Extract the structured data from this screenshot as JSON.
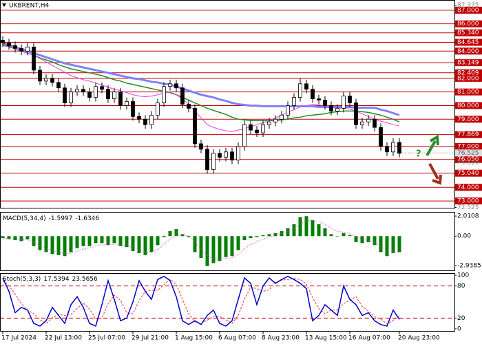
{
  "chart_data": [
    {
      "type": "candlestick",
      "title": "UKBRENT,H4",
      "categories": [
        "17 Jul 2024",
        null,
        null,
        null,
        null,
        null,
        null,
        "22 Jul 13:00",
        null,
        null,
        null,
        null,
        null,
        null,
        "25 Jul 07:00",
        null,
        null,
        null,
        null,
        null,
        null,
        "29 Jul 21:00",
        null,
        null,
        null,
        null,
        null,
        null,
        "1 Aug 15:00",
        null,
        null,
        null,
        null,
        null,
        null,
        "6 Aug 07:00",
        null,
        null,
        null,
        null,
        null,
        null,
        "8 Aug 23:00",
        null,
        null,
        null,
        null,
        null,
        null,
        "13 Aug 15:00",
        null,
        null,
        null,
        null,
        null,
        null,
        "16 Aug 07:00",
        null,
        null,
        null,
        null,
        null,
        null,
        null,
        "20 Aug 23:00"
      ],
      "open": [
        84.8,
        84.6,
        84.4,
        84.2,
        84.0,
        84.3,
        82.6,
        81.8,
        82.0,
        81.7,
        81.3,
        80.2,
        81.0,
        81.2,
        81.0,
        80.6,
        81.4,
        81.2,
        80.5,
        81.0,
        80.0,
        80.3,
        79.2,
        79.0,
        78.6,
        79.3,
        80.2,
        81.4,
        81.6,
        81.3,
        80.1,
        79.8,
        77.2,
        76.8,
        75.3,
        76.5,
        76.2,
        76.6,
        76.0,
        77.0,
        78.6,
        78.2,
        78.0,
        78.6,
        78.8,
        79.0,
        79.3,
        80.0,
        80.6,
        81.6,
        81.2,
        80.5,
        80.4,
        80.0,
        79.6,
        79.8,
        80.7,
        80.2,
        78.6,
        78.8,
        79.0,
        78.4,
        77.0,
        76.6,
        77.3
      ],
      "high": [
        85.1,
        84.9,
        84.7,
        84.5,
        84.6,
        84.6,
        82.9,
        82.3,
        82.3,
        82.0,
        81.6,
        81.3,
        81.5,
        81.5,
        81.3,
        81.7,
        81.7,
        81.5,
        81.3,
        81.3,
        80.6,
        80.6,
        79.5,
        79.3,
        79.6,
        80.5,
        81.7,
        81.9,
        81.9,
        81.6,
        80.4,
        80.1,
        77.5,
        77.1,
        76.8,
        76.8,
        76.9,
        76.9,
        77.3,
        78.9,
        78.9,
        78.5,
        78.9,
        79.1,
        79.3,
        79.6,
        80.3,
        80.9,
        82.0,
        81.9,
        81.5,
        80.8,
        80.7,
        80.3,
        80.1,
        81.0,
        81.0,
        80.5,
        79.1,
        79.3,
        79.3,
        78.7,
        77.3,
        77.6,
        77.6
      ],
      "low": [
        84.3,
        84.1,
        83.9,
        83.7,
        83.7,
        82.3,
        81.5,
        81.5,
        81.4,
        81.0,
        79.9,
        79.9,
        80.7,
        80.7,
        80.3,
        80.3,
        80.9,
        80.2,
        80.2,
        79.7,
        79.7,
        78.9,
        78.7,
        78.3,
        78.3,
        79.0,
        79.9,
        81.1,
        81.0,
        79.8,
        79.5,
        76.9,
        76.5,
        75.0,
        75.0,
        75.9,
        75.9,
        75.7,
        75.7,
        76.7,
        77.9,
        77.7,
        77.7,
        78.3,
        78.5,
        78.7,
        79.0,
        79.7,
        80.3,
        80.9,
        80.2,
        80.1,
        79.7,
        79.3,
        79.3,
        79.5,
        79.9,
        78.3,
        78.3,
        78.5,
        78.1,
        76.7,
        76.3,
        76.3,
        76.2
      ],
      "close": [
        84.6,
        84.4,
        84.2,
        84.0,
        84.3,
        82.6,
        81.8,
        82.0,
        81.7,
        81.3,
        80.2,
        81.0,
        81.2,
        81.0,
        80.6,
        81.4,
        81.2,
        80.5,
        81.0,
        80.0,
        80.3,
        79.2,
        79.0,
        78.6,
        79.3,
        80.2,
        81.4,
        81.6,
        81.3,
        80.1,
        79.8,
        77.2,
        76.8,
        75.3,
        76.5,
        76.2,
        76.6,
        76.0,
        77.0,
        78.6,
        78.2,
        78.0,
        78.6,
        78.8,
        79.0,
        79.3,
        80.0,
        80.6,
        81.6,
        81.2,
        80.5,
        80.4,
        80.0,
        79.6,
        79.8,
        80.7,
        80.2,
        78.6,
        78.8,
        79.0,
        78.4,
        77.0,
        76.6,
        77.3,
        76.5
      ],
      "series": [
        {
          "color": "#8080ff",
          "width": 3,
          "values": [
            84.6,
            84.45,
            84.3,
            84.15,
            84.0,
            83.85,
            83.7,
            83.55,
            83.4,
            83.25,
            83.1,
            83.0,
            82.9,
            82.8,
            82.7,
            82.6,
            82.5,
            82.4,
            82.3,
            82.2,
            82.1,
            82.0,
            81.95,
            81.85,
            81.75,
            81.7,
            81.6,
            81.55,
            81.4,
            81.25,
            81.1,
            80.95,
            80.8,
            80.7,
            80.6,
            80.45,
            80.35,
            80.2,
            80.1,
            80.05,
            80.0,
            80.0,
            79.95,
            79.95,
            79.95,
            79.95,
            79.95,
            79.95,
            79.95,
            79.95,
            79.95,
            79.9,
            79.9,
            79.9,
            79.9,
            79.9,
            79.9,
            79.85,
            79.85,
            79.85,
            79.85,
            79.7,
            79.6,
            79.45,
            79.3
          ]
        },
        {
          "color": "#228b22",
          "width": 1.5,
          "values": [
            84.5,
            84.35,
            84.15,
            84.0,
            83.85,
            83.7,
            83.5,
            83.35,
            83.2,
            83.0,
            82.85,
            82.7,
            82.6,
            82.5,
            82.4,
            82.3,
            82.2,
            82.05,
            81.9,
            81.8,
            81.65,
            81.55,
            81.45,
            81.35,
            81.25,
            81.15,
            81.05,
            80.95,
            80.8,
            80.6,
            80.4,
            80.2,
            80.0,
            79.8,
            79.65,
            79.5,
            79.35,
            79.15,
            79.0,
            78.95,
            78.9,
            78.9,
            78.9,
            78.9,
            78.9,
            78.95,
            79.0,
            79.1,
            79.15,
            79.25,
            79.3,
            79.35,
            79.4,
            79.5,
            79.55,
            79.6,
            79.6,
            79.6,
            79.55,
            79.5,
            79.4,
            79.3,
            79.15,
            79.0,
            78.8
          ]
        },
        {
          "color": "#e040e0",
          "width": 1,
          "values": [
            84.4,
            84.3,
            84.15,
            84.0,
            83.85,
            83.7,
            83.45,
            83.2,
            82.95,
            82.7,
            82.45,
            82.2,
            82.05,
            81.9,
            81.8,
            81.65,
            81.5,
            81.35,
            81.2,
            81.1,
            80.95,
            80.8,
            80.7,
            80.65,
            80.7,
            80.8,
            80.9,
            81.0,
            80.8,
            80.5,
            80.1,
            79.6,
            79.1,
            78.6,
            78.4,
            78.25,
            78.15,
            78.1,
            78.2,
            78.3,
            78.45,
            78.6,
            78.75,
            78.9,
            79.1,
            79.3,
            79.5,
            79.7,
            79.9,
            80.0,
            80.1,
            80.05,
            80.0,
            79.95,
            79.85,
            79.8,
            79.75,
            79.6,
            79.4,
            79.2,
            79.0,
            78.85,
            78.75,
            78.6,
            78.5
          ]
        }
      ],
      "ylim": [
        72.5,
        87.75
      ],
      "yticks": [
        {
          "value": 87.375,
          "label": "87.375"
        },
        {
          "value": 75.81,
          "label": "75.810"
        },
        {
          "value": 72.525,
          "label": "72.525"
        }
      ],
      "levels": [
        {
          "value": 87,
          "label": "87.000"
        },
        {
          "value": 86,
          "label": "86.000"
        },
        {
          "value": 85.34,
          "label": "85.340"
        },
        {
          "value": 84.645,
          "label": "84.645"
        },
        {
          "value": 84,
          "label": "84.000"
        },
        {
          "value": 83.149,
          "label": "83.149"
        },
        {
          "value": 82.409,
          "label": "82.409"
        },
        {
          "value": 82,
          "label": "82.000"
        },
        {
          "value": 81,
          "label": "81.000"
        },
        {
          "value": 80,
          "label": "80.000"
        },
        {
          "value": 79,
          "label": "79.000"
        },
        {
          "value": 77.869,
          "label": "77.869"
        },
        {
          "value": 77,
          "label": "77.000"
        },
        {
          "value": 76.05,
          "label": "76.050"
        },
        {
          "value": 75.04,
          "label": "75.040"
        },
        {
          "value": 74,
          "label": "74.000"
        },
        {
          "value": 73,
          "label": "73.000"
        }
      ],
      "level_color": "#c00000",
      "last_price": {
        "value": 76.525,
        "label": "76.525"
      },
      "forecast_mark": "?"
    },
    {
      "type": "macd",
      "title": "MACD(5,34,4)",
      "series": [
        {
          "color": "#008000",
          "style": "histogram",
          "values": [
            -0.2,
            -0.3,
            -0.4,
            -0.5,
            -0.3,
            -1.0,
            -1.4,
            -1.6,
            -1.8,
            -1.9,
            -2.0,
            -1.6,
            -1.2,
            -1.0,
            -1.0,
            -0.7,
            -0.7,
            -0.9,
            -0.7,
            -1.0,
            -1.1,
            -1.5,
            -1.7,
            -1.9,
            -1.6,
            -0.9,
            -0.1,
            0.5,
            0.7,
            0.2,
            -0.1,
            -1.6,
            -2.2,
            -3.0,
            -2.7,
            -2.5,
            -2.1,
            -2.0,
            -1.4,
            -0.4,
            -0.2,
            -0.1,
            0.1,
            0.2,
            0.3,
            0.5,
            0.8,
            1.2,
            1.9,
            2.0,
            1.6,
            1.2,
            0.8,
            0.2,
            0.0,
            0.3,
            0.1,
            -0.6,
            -0.7,
            -0.6,
            -0.9,
            -1.6,
            -2.0,
            -1.7,
            -1.5997
          ]
        },
        {
          "color": "#e040e0",
          "style": "dotted",
          "values": [
            -0.2,
            -0.24,
            -0.3,
            -0.38,
            -0.35,
            -0.61,
            -0.93,
            -1.2,
            -1.44,
            -1.62,
            -1.77,
            -1.7,
            -1.5,
            -1.3,
            -1.18,
            -0.99,
            -0.87,
            -0.88,
            -0.81,
            -0.89,
            -0.97,
            -1.18,
            -1.39,
            -1.59,
            -1.6,
            -1.32,
            -0.83,
            -0.3,
            0.1,
            0.14,
            0.04,
            -0.62,
            -1.25,
            -1.95,
            -2.25,
            -2.35,
            -2.25,
            -2.15,
            -1.85,
            -1.27,
            -0.84,
            -0.54,
            -0.28,
            -0.09,
            0.07,
            0.24,
            0.46,
            0.76,
            1.22,
            1.53,
            1.56,
            1.42,
            1.17,
            0.78,
            0.47,
            0.4,
            0.28,
            -0.07,
            -0.32,
            -0.43,
            -0.62,
            -1.01,
            -1.41,
            -1.53,
            -1.6346
          ]
        }
      ],
      "ylim": [
        -3.43,
        2.43
      ],
      "yticks": [
        2.0108,
        {
          "value": 0,
          "label": "0.00"
        },
        -2.9385
      ]
    },
    {
      "type": "stochastic",
      "title": "Stoch(5,3,3)",
      "series": [
        {
          "color": "#0000c8",
          "style": "solid",
          "values": [
            95,
            70,
            30,
            40,
            35,
            10,
            5,
            15,
            40,
            25,
            10,
            45,
            60,
            40,
            10,
            5,
            45,
            90,
            55,
            15,
            20,
            50,
            90,
            70,
            55,
            92,
            98,
            90,
            60,
            15,
            8,
            15,
            8,
            25,
            35,
            10,
            5,
            15,
            55,
            95,
            85,
            45,
            80,
            95,
            85,
            92,
            98,
            92,
            85,
            75,
            15,
            25,
            45,
            35,
            25,
            80,
            55,
            45,
            25,
            30,
            15,
            8,
            5,
            35,
            17.5394
          ]
        },
        {
          "color": "#ff3030",
          "style": "dashed",
          "values": [
            90,
            80,
            65,
            47,
            35,
            28,
            17,
            10,
            20,
            27,
            25,
            27,
            38,
            48,
            37,
            18,
            20,
            47,
            63,
            53,
            30,
            28,
            53,
            70,
            72,
            72,
            82,
            93,
            83,
            55,
            28,
            13,
            10,
            16,
            23,
            23,
            17,
            10,
            25,
            55,
            78,
            75,
            70,
            73,
            87,
            91,
            92,
            94,
            92,
            84,
            58,
            38,
            28,
            35,
            35,
            47,
            53,
            60,
            42,
            33,
            23,
            18,
            9,
            16,
            23.5656
          ]
        }
      ],
      "ylim": [
        -4,
        104
      ],
      "yticks": [
        0,
        20,
        80,
        100
      ],
      "levels": [
        80,
        20
      ],
      "level_color": "#c00000"
    }
  ]
}
